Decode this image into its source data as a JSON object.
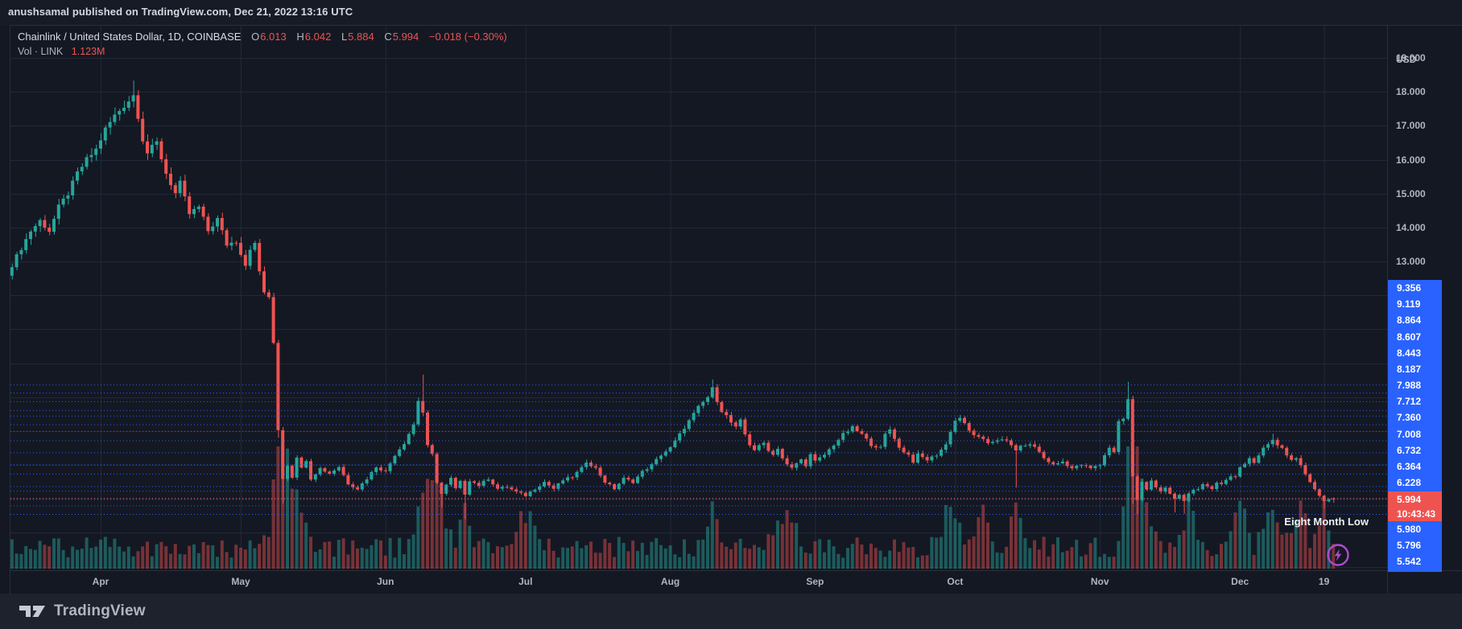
{
  "window": {
    "published_bar_text": "anushsamal published on TradingView.com, Dec 21, 2022 13:16 UTC"
  },
  "legend": {
    "symbol_title": "Chainlink / United States Dollar, 1D, COINBASE",
    "ohlc": {
      "open_label": "O",
      "open": "6.013",
      "high_label": "H",
      "high": "6.042",
      "low_label": "L",
      "low": "5.884",
      "close_label": "C",
      "close": "5.994",
      "change": "−0.018 (−0.30%)"
    },
    "volume_label": "Vol · LINK",
    "volume_value": "1.123M"
  },
  "price_axis": {
    "unit": "USD",
    "gridline_labels": [
      "19.000",
      "18.000",
      "17.000",
      "16.000",
      "15.000",
      "14.000",
      "13.000"
    ],
    "stacked_labels_above": [
      "9.356",
      "9.119",
      "8.864",
      "8.607",
      "8.443",
      "8.187",
      "7.988",
      "7.712",
      "7.360",
      "7.008",
      "6.732",
      "6.364",
      "6.228"
    ],
    "last_price": {
      "value": "5.994",
      "countdown": "10:43:43"
    },
    "stacked_labels_below": [
      "5.980",
      "5.796",
      "5.542"
    ]
  },
  "time_axis": {
    "labels": [
      "Apr",
      "May",
      "Jun",
      "Jul",
      "Aug",
      "Sep",
      "Oct",
      "Nov",
      "Dec",
      "19"
    ]
  },
  "annotation": {
    "eight_month_low": "Eight Month Low"
  },
  "footer": {
    "brand": "TradingView"
  },
  "icons": {
    "flash_icon": "lightning-flash",
    "logo_icon": "tradingview-mark"
  },
  "colors": {
    "up": "#26a69a",
    "down": "#ef5350",
    "volume_up": "rgba(38,166,154,0.48)",
    "volume_down": "rgba(239,83,80,0.45)",
    "alert_blue": "#2962ff",
    "last_price_red": "#ef5350",
    "background": "#141823",
    "panel": "#1e222d",
    "grid": "#222838",
    "text_primary": "#d5d8df",
    "text_secondary": "#b2b5be",
    "flash_purple": "#b14bcf"
  },
  "chart_data": {
    "type": "candlestick",
    "title": "Chainlink / United States Dollar, 1D, COINBASE",
    "interval": "1D",
    "volume_overlay": true,
    "y_axis": {
      "unit": "USD",
      "visible_range": [
        4.0,
        19.4
      ],
      "labeled_gridlines": [
        19,
        18,
        17,
        16,
        15,
        14,
        13
      ],
      "scale": "linear"
    },
    "x_axis": {
      "visible_months": [
        "Apr",
        "May",
        "Jun",
        "Jul",
        "Aug",
        "Sep",
        "Oct",
        "Nov",
        "Dec"
      ],
      "last_tick": "Dec 19",
      "end_date": "Dec 21, 2022"
    },
    "current_bar": {
      "open": 6.013,
      "high": 6.042,
      "low": 5.884,
      "close": 5.994,
      "change": -0.018,
      "change_pct": -0.3,
      "volume": "1.123M",
      "bar_close_countdown": "10:43:43"
    },
    "last_price": 5.994,
    "alert_levels": [
      9.356,
      9.119,
      8.864,
      8.607,
      8.443,
      8.187,
      7.988,
      7.712,
      7.36,
      7.008,
      6.732,
      6.364,
      6.228,
      5.98,
      5.796,
      5.542
    ],
    "annotation": {
      "text": "Eight Month Low",
      "price_region": 5.95,
      "date_region": "Dec 19, 2022"
    },
    "price_path_anchors_day_close": [
      [
        0,
        12.9
      ],
      [
        2,
        13.4
      ],
      [
        4,
        13.9
      ],
      [
        6,
        14.2
      ],
      [
        8,
        13.9
      ],
      [
        10,
        14.6
      ],
      [
        12,
        15.0
      ],
      [
        14,
        15.6
      ],
      [
        16,
        16.0
      ],
      [
        18,
        16.3
      ],
      [
        20,
        16.9
      ],
      [
        22,
        17.3
      ],
      [
        24,
        17.6
      ],
      [
        26,
        17.9
      ],
      [
        27,
        17.3
      ],
      [
        28,
        16.6
      ],
      [
        29,
        16.2
      ],
      [
        31,
        16.5
      ],
      [
        33,
        15.6
      ],
      [
        35,
        15.0
      ],
      [
        36,
        15.3
      ],
      [
        38,
        14.4
      ],
      [
        40,
        14.6
      ],
      [
        42,
        13.9
      ],
      [
        44,
        14.25
      ],
      [
        46,
        13.5
      ],
      [
        48,
        13.6
      ],
      [
        50,
        12.9
      ],
      [
        51,
        13.4
      ],
      [
        52,
        13.5
      ],
      [
        53,
        12.7
      ],
      [
        54,
        12.1
      ],
      [
        55,
        11.9
      ],
      [
        56,
        10.6
      ],
      [
        57,
        8.05
      ],
      [
        58,
        6.6
      ],
      [
        59,
        7.0
      ],
      [
        60,
        6.65
      ],
      [
        61,
        7.25
      ],
      [
        62,
        6.9
      ],
      [
        63,
        7.15
      ],
      [
        64,
        6.6
      ],
      [
        66,
        6.9
      ],
      [
        68,
        6.75
      ],
      [
        70,
        6.95
      ],
      [
        72,
        6.45
      ],
      [
        74,
        6.3
      ],
      [
        76,
        6.6
      ],
      [
        78,
        6.95
      ],
      [
        80,
        6.8
      ],
      [
        82,
        7.3
      ],
      [
        84,
        7.65
      ],
      [
        86,
        8.2
      ],
      [
        87,
        8.9
      ],
      [
        88,
        8.55
      ],
      [
        89,
        7.55
      ],
      [
        90,
        7.3
      ],
      [
        91,
        6.5
      ],
      [
        92,
        6.15
      ],
      [
        93,
        6.4
      ],
      [
        94,
        6.6
      ],
      [
        95,
        6.3
      ],
      [
        96,
        6.5
      ],
      [
        97,
        6.15
      ],
      [
        98,
        6.55
      ],
      [
        100,
        6.4
      ],
      [
        102,
        6.6
      ],
      [
        104,
        6.3
      ],
      [
        106,
        6.35
      ],
      [
        108,
        6.2
      ],
      [
        110,
        6.1
      ],
      [
        112,
        6.3
      ],
      [
        114,
        6.5
      ],
      [
        116,
        6.3
      ],
      [
        118,
        6.55
      ],
      [
        120,
        6.65
      ],
      [
        122,
        6.9
      ],
      [
        123,
        7.1
      ],
      [
        125,
        6.9
      ],
      [
        127,
        6.5
      ],
      [
        129,
        6.3
      ],
      [
        131,
        6.6
      ],
      [
        133,
        6.5
      ],
      [
        135,
        6.8
      ],
      [
        137,
        7.0
      ],
      [
        139,
        7.3
      ],
      [
        141,
        7.5
      ],
      [
        143,
        7.9
      ],
      [
        145,
        8.3
      ],
      [
        147,
        8.7
      ],
      [
        149,
        9.0
      ],
      [
        150,
        9.25
      ],
      [
        151,
        8.9
      ],
      [
        152,
        8.6
      ],
      [
        153,
        8.45
      ],
      [
        154,
        8.25
      ],
      [
        155,
        8.1
      ],
      [
        156,
        8.3
      ],
      [
        157,
        7.9
      ],
      [
        158,
        7.6
      ],
      [
        159,
        7.45
      ],
      [
        160,
        7.55
      ],
      [
        161,
        7.65
      ],
      [
        162,
        7.45
      ],
      [
        163,
        7.3
      ],
      [
        164,
        7.5
      ],
      [
        165,
        7.2
      ],
      [
        166,
        7.0
      ],
      [
        167,
        6.9
      ],
      [
        168,
        7.05
      ],
      [
        169,
        7.15
      ],
      [
        170,
        7.0
      ],
      [
        171,
        7.3
      ],
      [
        172,
        7.1
      ],
      [
        174,
        7.3
      ],
      [
        176,
        7.6
      ],
      [
        178,
        7.9
      ],
      [
        180,
        8.1
      ],
      [
        182,
        7.9
      ],
      [
        184,
        7.6
      ],
      [
        186,
        7.5
      ],
      [
        187,
        7.9
      ],
      [
        188,
        8.05
      ],
      [
        189,
        7.8
      ],
      [
        190,
        7.5
      ],
      [
        192,
        7.3
      ],
      [
        193,
        7.1
      ],
      [
        194,
        7.3
      ],
      [
        196,
        7.15
      ],
      [
        198,
        7.3
      ],
      [
        200,
        7.6
      ],
      [
        201,
        8.0
      ],
      [
        202,
        8.3
      ],
      [
        203,
        8.4
      ],
      [
        204,
        8.2
      ],
      [
        205,
        8.0
      ],
      [
        207,
        7.8
      ],
      [
        209,
        7.65
      ],
      [
        211,
        7.75
      ],
      [
        213,
        7.7
      ],
      [
        215,
        7.45
      ],
      [
        217,
        7.6
      ],
      [
        219,
        7.55
      ],
      [
        221,
        7.2
      ],
      [
        223,
        7.0
      ],
      [
        225,
        7.1
      ],
      [
        227,
        6.9
      ],
      [
        229,
        7.0
      ],
      [
        231,
        6.9
      ],
      [
        233,
        7.0
      ],
      [
        234,
        7.3
      ],
      [
        235,
        7.5
      ],
      [
        236,
        7.4
      ],
      [
        237,
        8.3
      ],
      [
        238,
        8.35
      ],
      [
        239,
        8.95
      ],
      [
        240,
        6.65
      ],
      [
        241,
        5.95
      ],
      [
        242,
        6.5
      ],
      [
        243,
        6.3
      ],
      [
        244,
        6.55
      ],
      [
        245,
        6.35
      ],
      [
        246,
        6.2
      ],
      [
        247,
        6.3
      ],
      [
        248,
        6.15
      ],
      [
        249,
        6.0
      ],
      [
        250,
        6.1
      ],
      [
        251,
        5.95
      ],
      [
        252,
        6.15
      ],
      [
        253,
        6.3
      ],
      [
        254,
        6.25
      ],
      [
        255,
        6.4
      ],
      [
        256,
        6.35
      ],
      [
        257,
        6.3
      ],
      [
        258,
        6.5
      ],
      [
        259,
        6.45
      ],
      [
        260,
        6.55
      ],
      [
        261,
        6.7
      ],
      [
        262,
        6.65
      ],
      [
        263,
        6.9
      ],
      [
        264,
        7.0
      ],
      [
        265,
        7.2
      ],
      [
        266,
        7.1
      ],
      [
        267,
        7.3
      ],
      [
        268,
        7.5
      ],
      [
        269,
        7.6
      ],
      [
        270,
        7.75
      ],
      [
        271,
        7.6
      ],
      [
        272,
        7.5
      ],
      [
        273,
        7.3
      ],
      [
        274,
        7.15
      ],
      [
        275,
        7.2
      ],
      [
        276,
        7.0
      ],
      [
        277,
        6.7
      ],
      [
        278,
        6.5
      ],
      [
        279,
        6.3
      ],
      [
        280,
        6.1
      ],
      [
        281,
        5.95
      ],
      [
        282,
        6.0
      ],
      [
        283,
        5.994
      ]
    ],
    "wick_overrides": {
      "26": {
        "h": 18.33
      },
      "57": {
        "l": 7.8
      },
      "58": {
        "l": 5.87
      },
      "88": {
        "h": 9.66
      },
      "92": {
        "l": 5.75
      },
      "97": {
        "l": 5.4
      },
      "150": {
        "h": 9.52
      },
      "167": {
        "l": 6.85
      },
      "215": {
        "l": 6.33
      },
      "239": {
        "h": 9.45
      },
      "240": {
        "l": 5.85
      },
      "241": {
        "l": 5.54
      },
      "249": {
        "l": 5.6
      },
      "251": {
        "l": 5.56
      },
      "270": {
        "h": 7.92
      },
      "281": {
        "l": 5.73
      },
      "283": {
        "o": 6.013,
        "h": 6.042,
        "l": 5.884,
        "c": 5.994
      }
    },
    "volume_spikes": [
      {
        "d": 57,
        "h": 100,
        "w": 1.2
      },
      {
        "d": 58,
        "h": 130,
        "w": 1.0
      },
      {
        "d": 61,
        "h": 60,
        "w": 1.5
      },
      {
        "d": 88,
        "h": 70,
        "w": 1.2
      },
      {
        "d": 91,
        "h": 85,
        "w": 1.5
      },
      {
        "d": 97,
        "h": 60,
        "w": 1.0
      },
      {
        "d": 110,
        "h": 40,
        "w": 2.0
      },
      {
        "d": 150,
        "h": 45,
        "w": 1.5
      },
      {
        "d": 166,
        "h": 40,
        "w": 2.0
      },
      {
        "d": 201,
        "h": 50,
        "w": 1.5
      },
      {
        "d": 208,
        "h": 65,
        "w": 0.8
      },
      {
        "d": 215,
        "h": 55,
        "w": 1.0
      },
      {
        "d": 239,
        "h": 80,
        "w": 1.0
      },
      {
        "d": 240,
        "h": 145,
        "w": 0.8
      },
      {
        "d": 242,
        "h": 70,
        "w": 1.5
      },
      {
        "d": 252,
        "h": 55,
        "w": 1.0
      },
      {
        "d": 263,
        "h": 60,
        "w": 1.2
      },
      {
        "d": 270,
        "h": 45,
        "w": 1.5
      },
      {
        "d": 276,
        "h": 55,
        "w": 1.0
      },
      {
        "d": 281,
        "h": 45,
        "w": 1.0
      }
    ]
  }
}
